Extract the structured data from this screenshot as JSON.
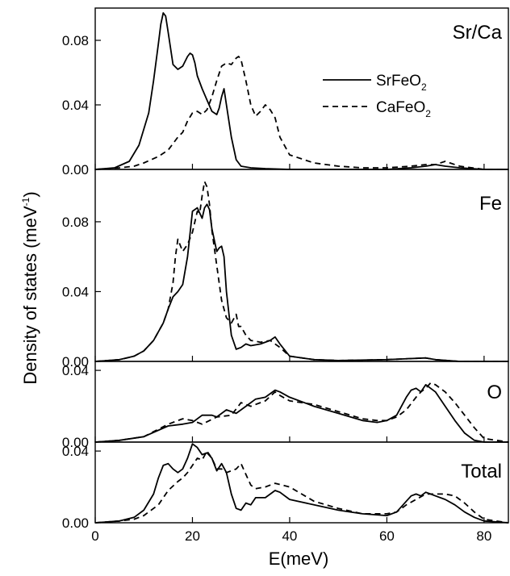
{
  "chart_data": {
    "type": "line",
    "xlabel": "E(meV)",
    "ylabel": "Density of states (meV",
    "ylabel_sup": "-1",
    "ylabel_close": ")",
    "xlim": [
      0,
      85
    ],
    "x_ticks": [
      0,
      20,
      40,
      60,
      80
    ],
    "legend": {
      "placement": "top-right of top panel",
      "entries": [
        {
          "base": "SrFeO",
          "sub": "2",
          "style": "solid"
        },
        {
          "base": "CaFeO",
          "sub": "2",
          "style": "dashed"
        }
      ]
    },
    "panels": [
      {
        "label": "Sr/Ca",
        "ylim": [
          0,
          0.1
        ],
        "y_ticks": [
          "0.00",
          "0.04",
          "0.08"
        ],
        "y_tick_values": [
          0,
          0.04,
          0.08
        ],
        "series": [
          {
            "style": "solid",
            "x": [
              0,
              4,
              7,
              9,
              11,
              12,
              13,
              13.5,
              14,
              14.5,
              15,
              16,
              17,
              18,
              19,
              19.5,
              20,
              20.5,
              21,
              22,
              23,
              24,
              25,
              25.5,
              26,
              26.5,
              27,
              28,
              29,
              30,
              32,
              35,
              40,
              50,
              60,
              65,
              68,
              70,
              72,
              75,
              80,
              85
            ],
            "y": [
              0,
              0.001,
              0.005,
              0.015,
              0.035,
              0.055,
              0.078,
              0.09,
              0.097,
              0.095,
              0.085,
              0.065,
              0.062,
              0.064,
              0.07,
              0.072,
              0.071,
              0.066,
              0.058,
              0.05,
              0.043,
              0.036,
              0.034,
              0.038,
              0.045,
              0.05,
              0.04,
              0.02,
              0.006,
              0.002,
              0.001,
              0.0005,
              0,
              0,
              0,
              0.001,
              0.002,
              0.003,
              0.002,
              0.001,
              0,
              0
            ]
          },
          {
            "style": "dashed",
            "x": [
              0,
              5,
              8,
              10,
              13,
              15,
              17,
              18,
              19,
              20,
              21,
              22,
              23,
              24,
              25,
              26,
              27,
              28,
              29,
              29.5,
              30,
              31,
              32,
              33,
              34,
              35,
              36,
              37,
              38,
              40,
              45,
              50,
              55,
              60,
              65,
              68,
              70,
              72,
              73,
              75,
              80,
              85
            ],
            "y": [
              0,
              0.001,
              0.002,
              0.004,
              0.008,
              0.012,
              0.02,
              0.023,
              0.03,
              0.035,
              0.036,
              0.034,
              0.037,
              0.045,
              0.055,
              0.064,
              0.066,
              0.065,
              0.069,
              0.07,
              0.068,
              0.055,
              0.04,
              0.033,
              0.036,
              0.04,
              0.037,
              0.032,
              0.02,
              0.009,
              0.004,
              0.002,
              0.001,
              0.001,
              0.002,
              0.003,
              0.003,
              0.005,
              0.004,
              0.002,
              0,
              0
            ]
          }
        ]
      },
      {
        "label": "Fe",
        "ylim": [
          0,
          0.11
        ],
        "y_ticks": [
          "0.00",
          "0.04",
          "0.08"
        ],
        "y_tick_values": [
          0,
          0.04,
          0.08
        ],
        "series": [
          {
            "style": "solid",
            "x": [
              0,
              5,
              8,
              10,
              12,
              14,
              15,
              16,
              17,
              18,
              19,
              20,
              21,
              22,
              22.5,
              23,
              23.5,
              24,
              25,
              25.5,
              26,
              26.5,
              27,
              28,
              29,
              30,
              31,
              32,
              34,
              36,
              37,
              38,
              40,
              45,
              50,
              60,
              68,
              70,
              75,
              80,
              85
            ],
            "y": [
              0,
              0.001,
              0.003,
              0.006,
              0.012,
              0.022,
              0.03,
              0.037,
              0.04,
              0.044,
              0.06,
              0.086,
              0.088,
              0.082,
              0.088,
              0.09,
              0.087,
              0.076,
              0.063,
              0.065,
              0.066,
              0.06,
              0.04,
              0.015,
              0.007,
              0.008,
              0.01,
              0.009,
              0.01,
              0.012,
              0.014,
              0.01,
              0.003,
              0.001,
              0.0005,
              0.001,
              0.002,
              0.001,
              0,
              0,
              0
            ]
          },
          {
            "style": "dashed",
            "x": [
              0,
              5,
              8,
              10,
              12,
              14,
              15,
              16,
              16.5,
              17,
              18,
              19,
              20,
              21,
              21.5,
              22,
              22.5,
              23,
              23.5,
              24,
              25,
              26,
              27,
              28,
              29,
              29.5,
              30,
              31,
              32,
              34,
              36,
              38,
              40,
              45,
              50,
              60,
              68,
              70,
              75,
              80,
              85
            ],
            "y": [
              0,
              0.001,
              0.003,
              0.006,
              0.012,
              0.022,
              0.03,
              0.045,
              0.06,
              0.07,
              0.063,
              0.067,
              0.074,
              0.086,
              0.085,
              0.095,
              0.103,
              0.1,
              0.09,
              0.075,
              0.055,
              0.035,
              0.025,
              0.022,
              0.027,
              0.02,
              0.02,
              0.015,
              0.012,
              0.011,
              0.012,
              0.008,
              0.003,
              0.001,
              0.0005,
              0.001,
              0.002,
              0.001,
              0,
              0,
              0
            ]
          }
        ]
      },
      {
        "label": "O",
        "ylim": [
          0,
          0.045
        ],
        "y_ticks": [
          "0.00",
          "0.04"
        ],
        "y_tick_values": [
          0,
          0.04
        ],
        "series": [
          {
            "style": "solid",
            "x": [
              0,
              5,
              10,
              15,
              18,
              20,
              22,
              24,
              25,
              27,
              29,
              31,
              33,
              35,
              37,
              38,
              40,
              45,
              50,
              55,
              58,
              60,
              62,
              64,
              65,
              66,
              67,
              68,
              69,
              70,
              72,
              74,
              76,
              78,
              80,
              85
            ],
            "y": [
              0,
              0.001,
              0.003,
              0.009,
              0.01,
              0.011,
              0.015,
              0.015,
              0.014,
              0.018,
              0.016,
              0.02,
              0.024,
              0.025,
              0.029,
              0.028,
              0.025,
              0.02,
              0.016,
              0.012,
              0.011,
              0.012,
              0.015,
              0.025,
              0.029,
              0.03,
              0.028,
              0.032,
              0.03,
              0.028,
              0.02,
              0.012,
              0.005,
              0.001,
              0,
              0
            ]
          },
          {
            "style": "dashed",
            "x": [
              0,
              5,
              10,
              15,
              18,
              20,
              22,
              25,
              28,
              30,
              32,
              35,
              37,
              38,
              40,
              45,
              50,
              55,
              58,
              60,
              62,
              64,
              66,
              67,
              68,
              69,
              70,
              72,
              74,
              76,
              78,
              80,
              85
            ],
            "y": [
              0,
              0.001,
              0.003,
              0.01,
              0.013,
              0.012,
              0.01,
              0.014,
              0.015,
              0.022,
              0.02,
              0.023,
              0.028,
              0.026,
              0.023,
              0.021,
              0.017,
              0.013,
              0.012,
              0.012,
              0.014,
              0.018,
              0.025,
              0.028,
              0.03,
              0.033,
              0.032,
              0.028,
              0.022,
              0.015,
              0.008,
              0.002,
              0
            ]
          }
        ]
      },
      {
        "label": "Total",
        "ylim": [
          0,
          0.045
        ],
        "y_ticks": [
          "0.00",
          "0.04"
        ],
        "y_tick_values": [
          0,
          0.04
        ],
        "series": [
          {
            "style": "solid",
            "x": [
              0,
              5,
              8,
              10,
              12,
              13,
              14,
              15,
              16,
              17,
              18,
              19,
              20,
              21,
              22,
              23,
              24,
              25,
              26,
              27,
              28,
              29,
              30,
              31,
              32,
              33,
              35,
              37,
              38,
              40,
              45,
              50,
              55,
              60,
              62,
              64,
              65,
              66,
              67,
              68,
              69,
              70,
              72,
              74,
              76,
              78,
              80,
              85
            ],
            "y": [
              0,
              0.001,
              0.003,
              0.007,
              0.016,
              0.025,
              0.032,
              0.033,
              0.03,
              0.028,
              0.03,
              0.036,
              0.044,
              0.042,
              0.038,
              0.039,
              0.036,
              0.029,
              0.033,
              0.028,
              0.016,
              0.008,
              0.007,
              0.011,
              0.01,
              0.014,
              0.014,
              0.018,
              0.017,
              0.013,
              0.01,
              0.007,
              0.005,
              0.004,
              0.006,
              0.012,
              0.015,
              0.016,
              0.015,
              0.017,
              0.016,
              0.015,
              0.013,
              0.01,
              0.006,
              0.003,
              0.001,
              0
            ]
          },
          {
            "style": "dashed",
            "x": [
              0,
              5,
              8,
              10,
              13,
              15,
              17,
              18,
              19,
              20,
              21,
              22,
              23,
              24,
              25,
              26,
              27,
              28,
              29,
              30,
              31,
              32,
              33,
              35,
              37,
              40,
              45,
              50,
              55,
              60,
              62,
              64,
              66,
              68,
              70,
              72,
              74,
              76,
              78,
              80,
              85
            ],
            "y": [
              0,
              0.001,
              0.002,
              0.004,
              0.01,
              0.018,
              0.023,
              0.025,
              0.028,
              0.032,
              0.036,
              0.035,
              0.04,
              0.036,
              0.03,
              0.03,
              0.028,
              0.029,
              0.03,
              0.033,
              0.027,
              0.021,
              0.019,
              0.02,
              0.022,
              0.02,
              0.012,
              0.008,
              0.005,
              0.005,
              0.006,
              0.01,
              0.013,
              0.016,
              0.016,
              0.016,
              0.015,
              0.011,
              0.006,
              0.002,
              0
            ]
          }
        ]
      }
    ]
  }
}
